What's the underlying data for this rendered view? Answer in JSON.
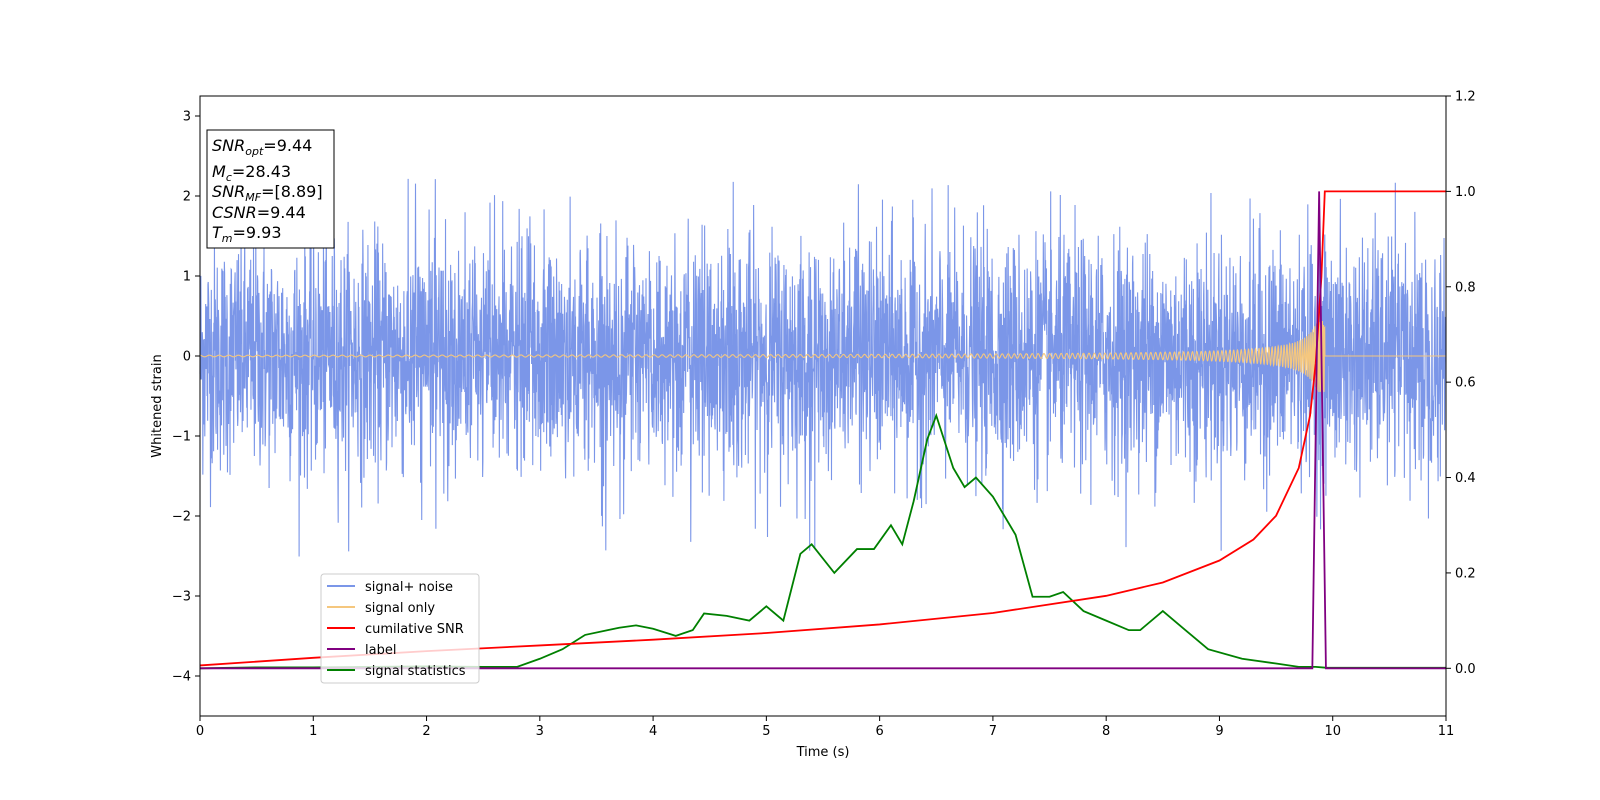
{
  "chart_data": {
    "type": "line",
    "title": "",
    "xlabel": "Time (s)",
    "ylabel": "Whitened strain",
    "y2label": "",
    "xlim": [
      0,
      11
    ],
    "ylim": [
      -4.5,
      3.25
    ],
    "y2lim": [
      -0.1,
      1.2
    ],
    "x_ticks": [
      0,
      1,
      2,
      3,
      4,
      5,
      6,
      7,
      8,
      9,
      10,
      11
    ],
    "y_ticks": [
      -4,
      -3,
      -2,
      -1,
      0,
      1,
      2,
      3
    ],
    "y_tick_labels": [
      "−4",
      "−3",
      "−2",
      "−1",
      "0",
      "1",
      "2",
      "3"
    ],
    "y2_ticks": [
      0.0,
      0.2,
      0.4,
      0.6,
      0.8,
      1.0,
      1.2
    ],
    "y2_tick_labels": [
      "0.0",
      "0.2",
      "0.4",
      "0.6",
      "0.8",
      "1.0",
      "1.2"
    ],
    "grid": false,
    "legend_position": "lower-left",
    "annotation": [
      {
        "name": "SNR",
        "sub": "opt",
        "value": "=9.44"
      },
      {
        "name": "M",
        "sub": "c",
        "value": "=28.43"
      },
      {
        "name": "SNR",
        "sub": "MF",
        "value": "=[8.89]"
      },
      {
        "name": "CSNR",
        "sub": "",
        "value": "=9.44"
      },
      {
        "name": "T",
        "sub": "m",
        "value": "=9.93"
      }
    ],
    "series": [
      {
        "name": "signal+ noise",
        "color": "#7b96e8",
        "axis": "left",
        "description_values": {
          "x_range": [
            0,
            11
          ],
          "y_typical_range": [
            -1.5,
            1.5
          ],
          "y_min": -2.6,
          "y_max": 2.25
        }
      },
      {
        "name": "signal only",
        "color": "#f5c77e",
        "axis": "left",
        "chirp": {
          "t_start": 0,
          "t_merger": 9.93,
          "amp_start": 0.01,
          "amp_max": 0.45
        }
      },
      {
        "name": "cumilative SNR",
        "color": "#ff0000",
        "axis": "right",
        "x": [
          0,
          1,
          2,
          3,
          4,
          5,
          6,
          7,
          8,
          8.5,
          9,
          9.3,
          9.5,
          9.7,
          9.8,
          9.85,
          9.9,
          9.93,
          11
        ],
        "values": [
          0.006,
          0.022,
          0.036,
          0.048,
          0.06,
          0.074,
          0.092,
          0.116,
          0.152,
          0.18,
          0.226,
          0.27,
          0.32,
          0.42,
          0.53,
          0.64,
          0.82,
          1.0,
          1.0
        ]
      },
      {
        "name": "label",
        "color": "#800080",
        "axis": "right",
        "x": [
          0,
          9.82,
          9.88,
          9.94,
          11
        ],
        "values": [
          0.0,
          0.0,
          1.0,
          0.0,
          0.0
        ]
      },
      {
        "name": "signal statistics",
        "color": "#008000",
        "axis": "right",
        "x": [
          0,
          0.5,
          1,
          1.5,
          2,
          2.5,
          2.8,
          3,
          3.2,
          3.4,
          3.6,
          3.7,
          3.85,
          4,
          4.2,
          4.35,
          4.45,
          4.65,
          4.85,
          5,
          5.15,
          5.3,
          5.4,
          5.6,
          5.8,
          5.95,
          6.1,
          6.2,
          6.3,
          6.42,
          6.5,
          6.65,
          6.75,
          6.85,
          7.0,
          7.2,
          7.35,
          7.5,
          7.62,
          7.8,
          8.0,
          8.2,
          8.3,
          8.5,
          8.7,
          8.9,
          9.2,
          9.5,
          9.7,
          9.85,
          9.95,
          11
        ],
        "values": [
          0.0,
          0.002,
          0.002,
          0.003,
          0.004,
          0.003,
          0.003,
          0.02,
          0.04,
          0.07,
          0.08,
          0.085,
          0.09,
          0.083,
          0.068,
          0.08,
          0.115,
          0.11,
          0.1,
          0.13,
          0.1,
          0.24,
          0.26,
          0.2,
          0.25,
          0.25,
          0.3,
          0.26,
          0.35,
          0.48,
          0.53,
          0.42,
          0.38,
          0.4,
          0.36,
          0.28,
          0.15,
          0.15,
          0.16,
          0.12,
          0.1,
          0.08,
          0.08,
          0.12,
          0.08,
          0.04,
          0.02,
          0.01,
          0.003,
          0.003,
          0.001,
          0.001
        ]
      }
    ]
  }
}
